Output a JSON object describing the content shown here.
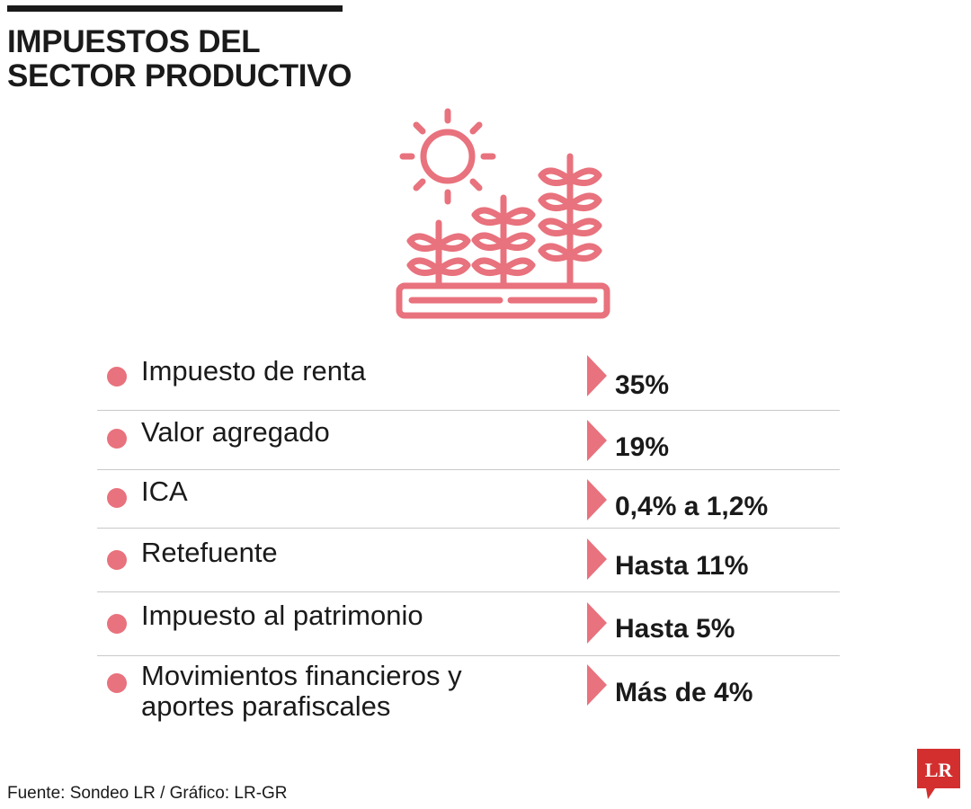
{
  "header": {
    "title_line1": "IMPUESTOS DEL",
    "title_line2": "SECTOR PRODUCTIVO"
  },
  "illustration": {
    "icon": "sun-and-crops-icon",
    "color": "#e8727d"
  },
  "taxes": [
    {
      "name": "Impuesto de renta",
      "rate": "35%"
    },
    {
      "name": "Valor agregado",
      "rate": "19%"
    },
    {
      "name": "ICA",
      "rate": "0,4% a 1,2%"
    },
    {
      "name": "Retefuente",
      "rate": "Hasta 11%"
    },
    {
      "name": "Impuesto al patrimonio",
      "rate": "Hasta 5%"
    },
    {
      "name_line1": "Movimientos financieros y",
      "name_line2": "aportes parafiscales",
      "rate": "Más de 4%"
    }
  ],
  "footer": {
    "source": "Fuente: Sondeo LR / Gráfico: LR-GR",
    "logo_text": "LR",
    "logo_color": "#d32f2f"
  },
  "colors": {
    "accent": "#e8727d",
    "text": "#1a1a1a",
    "divider": "#c9c9c9"
  }
}
